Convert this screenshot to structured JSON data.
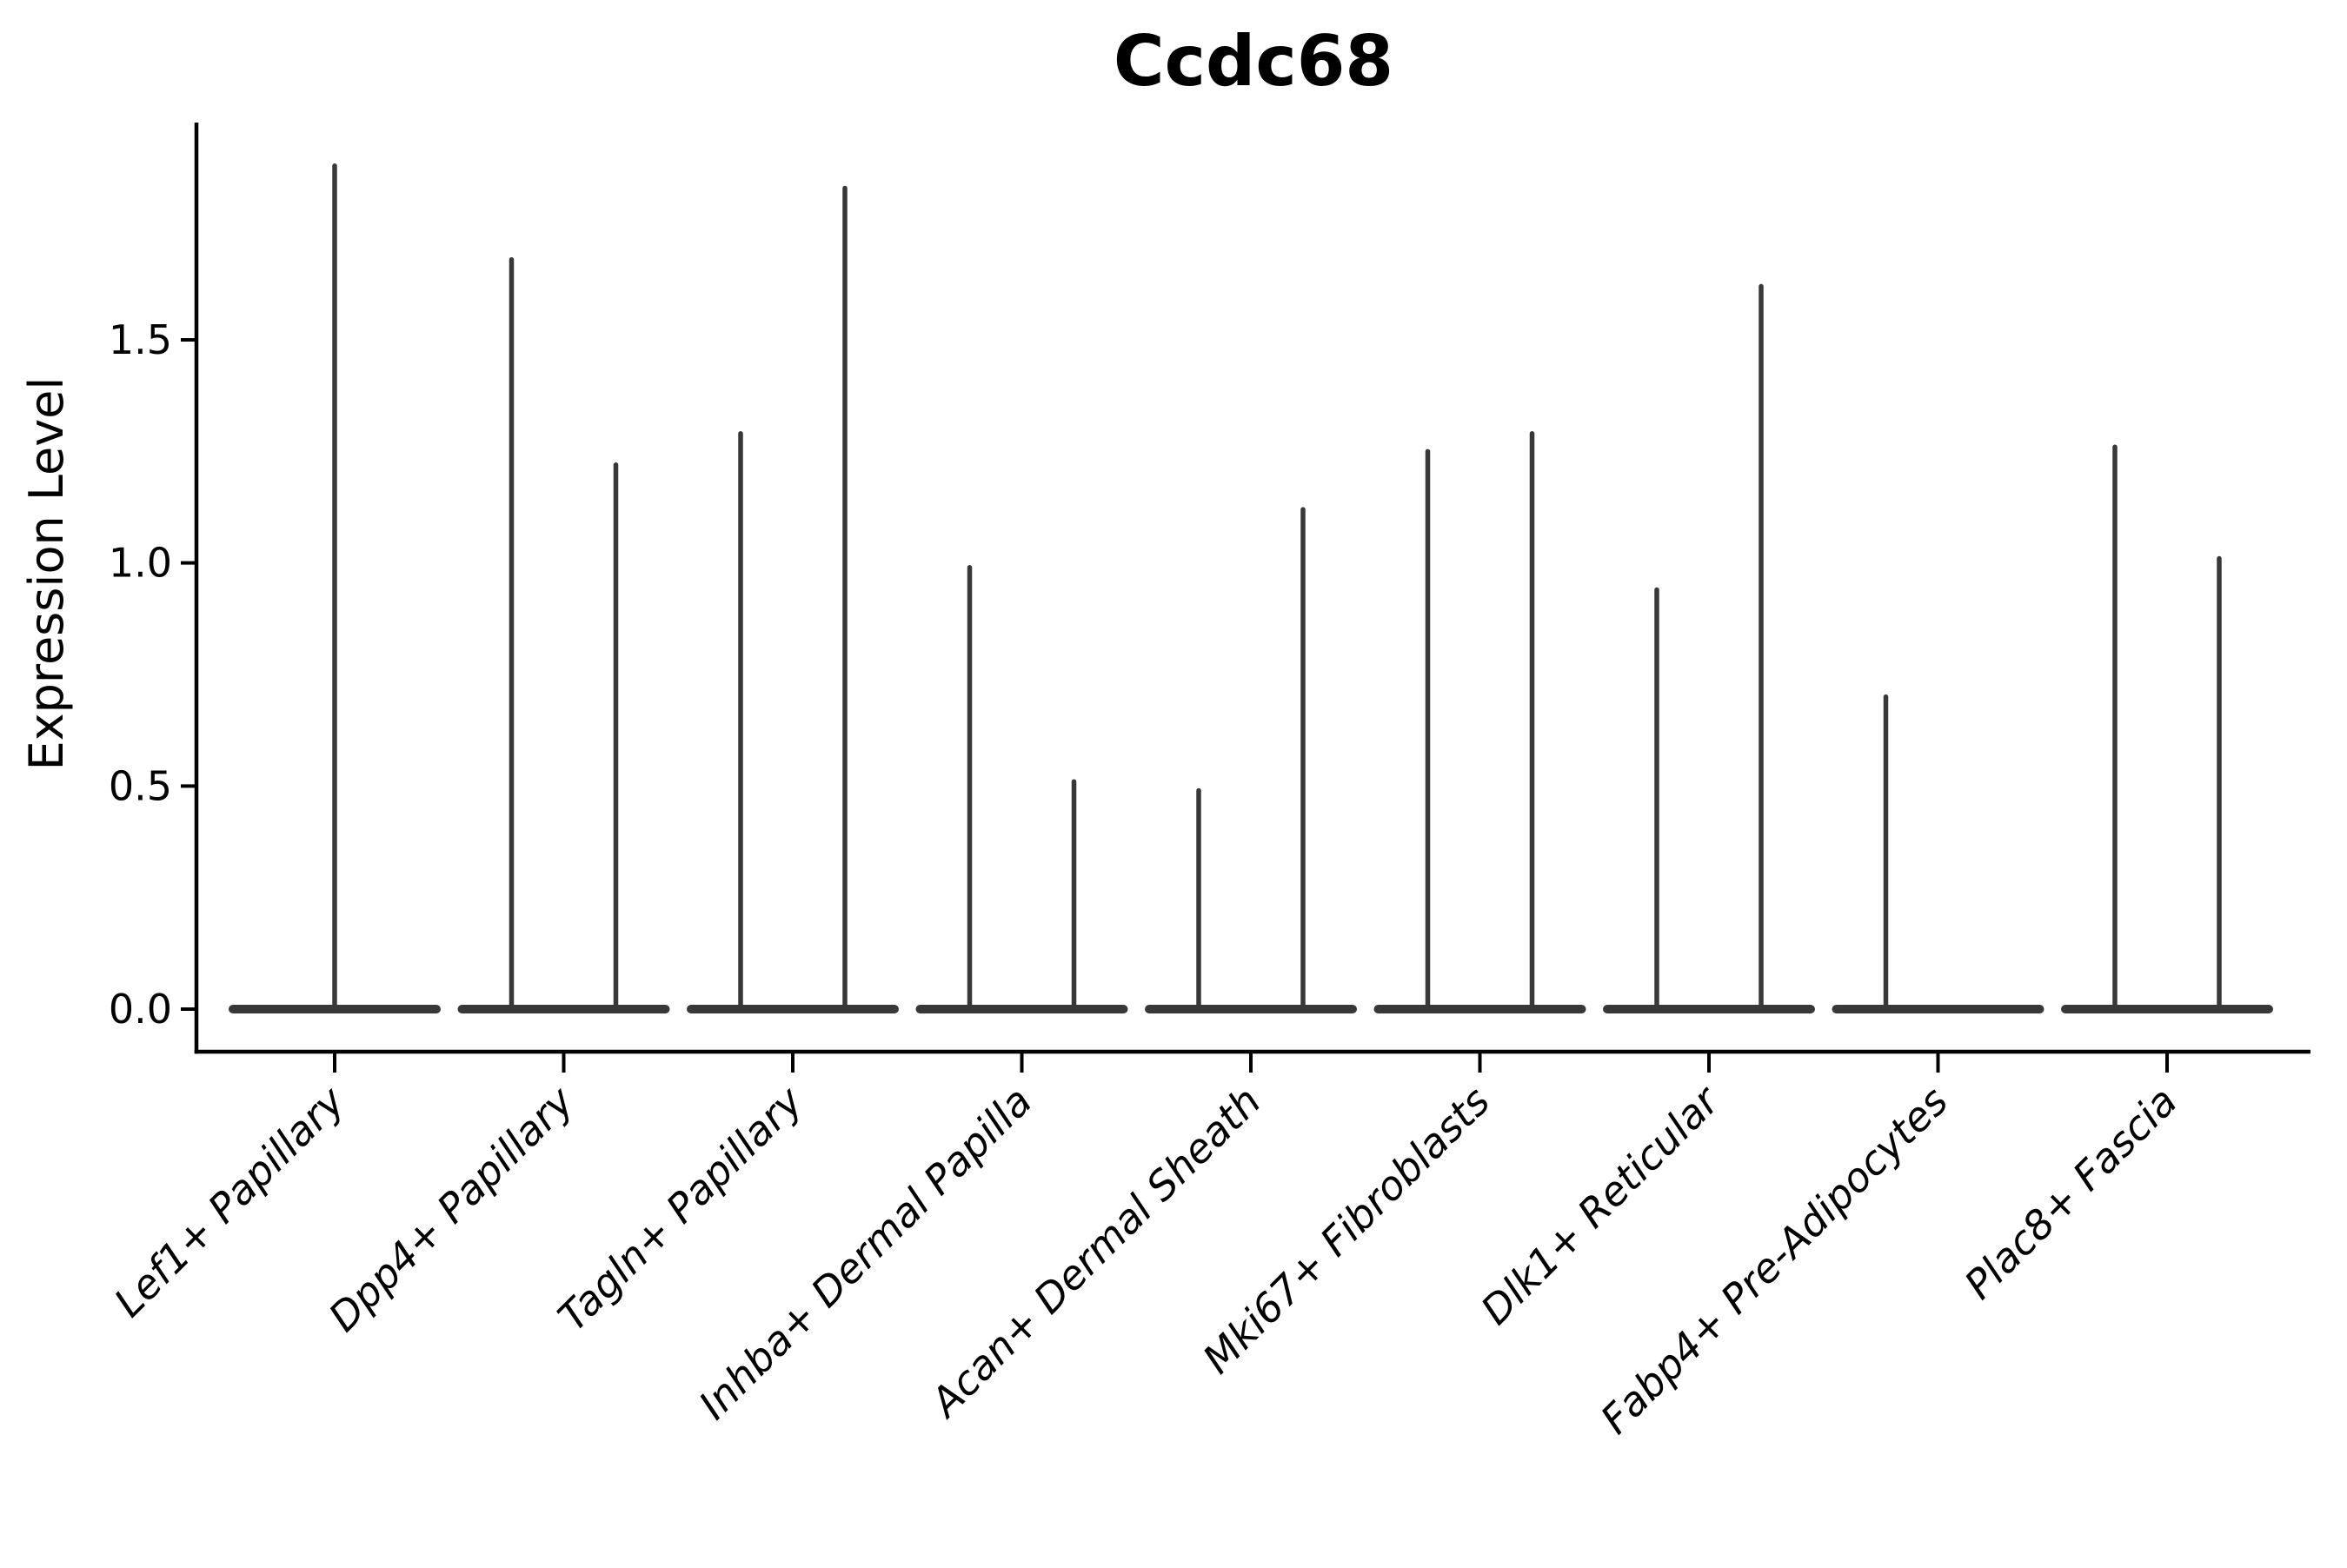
{
  "chart_data": {
    "type": "violin",
    "title": "Ccdc68",
    "xlabel": "",
    "ylabel": "Expression Level",
    "ylim": [
      -0.1,
      1.98
    ],
    "yticks": [
      0.0,
      0.5,
      1.0,
      1.5
    ],
    "ytick_labels": [
      "0.0",
      "0.5",
      "1.0",
      "1.5"
    ],
    "grid": false,
    "legend_position": "none",
    "categories": [
      "Lef1+ Papillary",
      "Dpp4+ Papillary",
      "Tagln+ Papillary",
      "Inhba+ Dermal Papilla",
      "Acan+ Dermal Sheath",
      "Mki67+ Fibroblasts",
      "Dlk1+ Reticular",
      "Fabp4+ Pre-Adipocytes",
      "Plac8+ Fascia"
    ],
    "violins": [
      {
        "category": "Lef1+ Papillary",
        "baseline_value": 0.0,
        "spikes": [
          {
            "position": "center",
            "max": 1.89
          }
        ]
      },
      {
        "category": "Dpp4+ Papillary",
        "baseline_value": 0.0,
        "spikes": [
          {
            "position": "left",
            "max": 1.68
          },
          {
            "position": "right",
            "max": 1.22
          }
        ]
      },
      {
        "category": "Tagln+ Papillary",
        "baseline_value": 0.0,
        "spikes": [
          {
            "position": "left",
            "max": 1.29
          },
          {
            "position": "right",
            "max": 1.84
          }
        ]
      },
      {
        "category": "Inhba+ Dermal Papilla",
        "baseline_value": 0.0,
        "spikes": [
          {
            "position": "left",
            "max": 0.99
          },
          {
            "position": "right",
            "max": 0.51
          }
        ]
      },
      {
        "category": "Acan+ Dermal Sheath",
        "baseline_value": 0.0,
        "spikes": [
          {
            "position": "left",
            "max": 0.49
          },
          {
            "position": "right",
            "max": 1.12
          }
        ]
      },
      {
        "category": "Mki67+ Fibroblasts",
        "baseline_value": 0.0,
        "spikes": [
          {
            "position": "left",
            "max": 1.25
          },
          {
            "position": "right",
            "max": 1.29
          }
        ]
      },
      {
        "category": "Dlk1+ Reticular",
        "baseline_value": 0.0,
        "spikes": [
          {
            "position": "left",
            "max": 0.94
          },
          {
            "position": "right",
            "max": 1.62
          }
        ]
      },
      {
        "category": "Fabp4+ Pre-Adipocytes",
        "baseline_value": 0.0,
        "spikes": [
          {
            "position": "left",
            "max": 0.7
          }
        ]
      },
      {
        "category": "Plac8+ Fascia",
        "baseline_value": 0.0,
        "spikes": [
          {
            "position": "left",
            "max": 1.26
          },
          {
            "position": "right",
            "max": 1.01
          }
        ]
      }
    ],
    "colors": {
      "violin": "#383838",
      "axis": "#000000",
      "text": "#000000",
      "background": "#ffffff"
    }
  }
}
